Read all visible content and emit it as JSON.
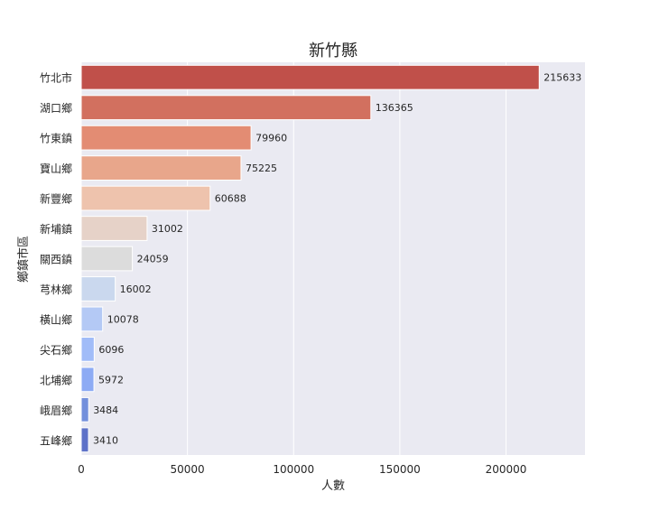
{
  "chart_data": {
    "type": "bar",
    "orientation": "horizontal",
    "title": "新竹縣",
    "xlabel": "人數",
    "ylabel": "鄉鎮市區",
    "categories": [
      "竹北市",
      "湖口鄉",
      "竹東鎮",
      "寶山鄉",
      "新豐鄉",
      "新埔鎮",
      "關西鎮",
      "芎林鄉",
      "橫山鄉",
      "尖石鄉",
      "北埔鄉",
      "峨眉鄉",
      "五峰鄉"
    ],
    "values": [
      215633,
      136365,
      79960,
      75225,
      60688,
      31002,
      24059,
      16002,
      10078,
      6096,
      5972,
      3484,
      3410
    ],
    "value_labels": [
      "215633",
      "136365",
      "79960",
      "75225",
      "60688",
      "31002",
      "24059",
      "16002",
      "10078",
      "6096",
      "5972",
      "3484",
      "3410"
    ],
    "bar_colors": [
      "#c0504a",
      "#d2705f",
      "#e38c73",
      "#e8a68b",
      "#eec3ad",
      "#e6d2c8",
      "#dcdcdc",
      "#cad8ee",
      "#b4c9f5",
      "#a1bcf8",
      "#8dabf4",
      "#7390dc",
      "#5e72c8"
    ],
    "xlim": [
      0,
      237196
    ],
    "xticks": [
      0,
      50000,
      100000,
      150000,
      200000
    ],
    "xtick_labels": [
      "0",
      "50000",
      "100000",
      "150000",
      "200000"
    ],
    "grid": true,
    "background": "#eaeaf2",
    "grid_color": "#ffffff"
  }
}
